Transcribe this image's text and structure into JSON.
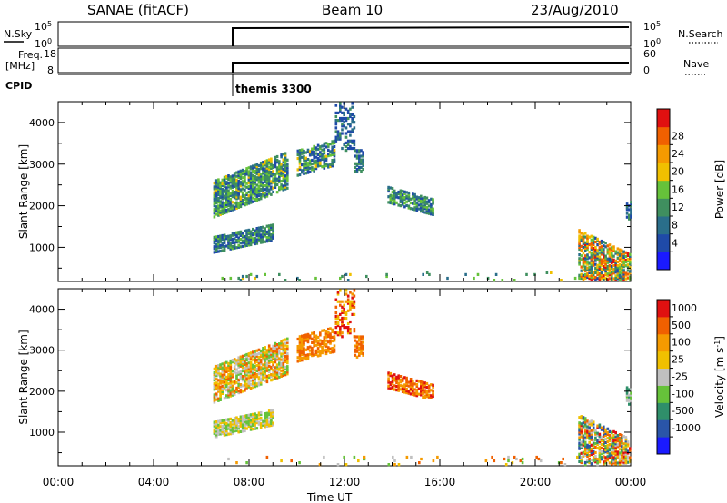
{
  "header": {
    "station": "SANAE (fitACF)",
    "beam": "Beam 10",
    "date": "23/Aug/2010"
  },
  "strips": {
    "nsky_label": "N.Sky",
    "nsearch_label": "N.Search",
    "noise_ticks": [
      "10^5",
      "10^0"
    ],
    "freq_label_1": "Freq.",
    "freq_label_2": "[MHz]",
    "freq_ticks": [
      "18",
      "8"
    ],
    "nave_label": "Nave",
    "nave_ticks": [
      "60",
      "0"
    ],
    "cpid_label": "CPID",
    "cpid_value": "themis 3300"
  },
  "colors": {
    "power": [
      "#1a1aff",
      "#1f4aa8",
      "#2a6e8a",
      "#3f8f5f",
      "#66c23a",
      "#f0c000",
      "#f59a00",
      "#f06000",
      "#e01010"
    ],
    "velocity": [
      "#1a1aff",
      "#2a55a8",
      "#2f8f6a",
      "#66c23a",
      "#c0c0c0",
      "#f0c000",
      "#f59a00",
      "#f06000",
      "#e01010"
    ]
  },
  "chart_data": [
    {
      "type": "heatmap",
      "title": "Power",
      "xlabel": "Time UT",
      "ylabel": "Slant Range [km]",
      "x_ticks": [
        "00:00",
        "04:00",
        "08:00",
        "12:00",
        "16:00",
        "20:00",
        "00:00"
      ],
      "y_ticks": [
        1000,
        2000,
        3000,
        4000
      ],
      "ylim": [
        180,
        4500
      ],
      "colorbar_label": "Power [dB]",
      "colorbar_ticks": [
        4,
        8,
        12,
        16,
        20,
        24,
        28
      ],
      "clim": [
        0,
        32
      ],
      "regions": [
        {
          "t": [
            6.5,
            9.6
          ],
          "r": [
            1700,
            2600
          ],
          "tilt": 700,
          "v": [
            6,
            18
          ],
          "density": 0.75
        },
        {
          "t": [
            6.5,
            9.0
          ],
          "r": [
            850,
            1250
          ],
          "tilt": 300,
          "v": [
            5,
            16
          ],
          "density": 0.8
        },
        {
          "t": [
            10.0,
            11.6
          ],
          "r": [
            2700,
            3300
          ],
          "tilt": 250,
          "v": [
            4,
            18
          ],
          "density": 0.6
        },
        {
          "t": [
            11.6,
            12.4
          ],
          "r": [
            3300,
            4450
          ],
          "tilt": 0,
          "v": [
            4,
            12
          ],
          "density": 0.35
        },
        {
          "t": [
            12.4,
            12.8
          ],
          "r": [
            2800,
            3300
          ],
          "tilt": 0,
          "v": [
            5,
            14
          ],
          "density": 0.6
        },
        {
          "t": [
            13.8,
            15.7
          ],
          "r": [
            2050,
            2450
          ],
          "tilt": -300,
          "v": [
            5,
            16
          ],
          "density": 0.7
        },
        {
          "t": [
            21.8,
            24.0
          ],
          "r": [
            250,
            1400
          ],
          "tilt": -600,
          "v": [
            6,
            30
          ],
          "density": 0.7
        },
        {
          "t": [
            23.8,
            24.0
          ],
          "r": [
            1650,
            2100
          ],
          "tilt": 0,
          "v": [
            6,
            14
          ],
          "density": 0.6
        },
        {
          "t": [
            6.5,
            24.0
          ],
          "r": [
            180,
            400
          ],
          "tilt": 0,
          "v": [
            8,
            18
          ],
          "density": 0.05
        }
      ]
    },
    {
      "type": "heatmap",
      "title": "Velocity",
      "xlabel": "Time UT",
      "ylabel": "Slant Range [km]",
      "x_ticks": [
        "00:00",
        "04:00",
        "08:00",
        "12:00",
        "16:00",
        "20:00",
        "00:00"
      ],
      "y_ticks": [
        1000,
        2000,
        3000,
        4000
      ],
      "ylim": [
        180,
        4500
      ],
      "colorbar_label": "Velocity [m s^-1]",
      "colorbar_ticks": [
        "1000",
        "500",
        "100",
        "25",
        "-25",
        "-100",
        "-500",
        "-1000"
      ],
      "regions": [
        {
          "t": [
            6.5,
            9.6
          ],
          "r": [
            1700,
            2600
          ],
          "tilt": 700,
          "v": [
            3,
            7
          ],
          "density": 0.75
        },
        {
          "t": [
            6.5,
            9.0
          ],
          "r": [
            850,
            1250
          ],
          "tilt": 300,
          "v": [
            3,
            5
          ],
          "density": 0.8
        },
        {
          "t": [
            10.0,
            11.6
          ],
          "r": [
            2700,
            3300
          ],
          "tilt": 250,
          "v": [
            6,
            7
          ],
          "density": 0.6
        },
        {
          "t": [
            11.6,
            12.4
          ],
          "r": [
            3300,
            4450
          ],
          "tilt": 0,
          "v": [
            5,
            8
          ],
          "density": 0.35
        },
        {
          "t": [
            12.4,
            12.8
          ],
          "r": [
            2800,
            3300
          ],
          "tilt": 0,
          "v": [
            6,
            7
          ],
          "density": 0.6
        },
        {
          "t": [
            13.8,
            15.7
          ],
          "r": [
            2050,
            2450
          ],
          "tilt": -300,
          "v": [
            6,
            8
          ],
          "density": 0.7
        },
        {
          "t": [
            21.8,
            24.0
          ],
          "r": [
            250,
            1400
          ],
          "tilt": -600,
          "v": [
            1,
            8
          ],
          "density": 0.7
        },
        {
          "t": [
            23.8,
            24.0
          ],
          "r": [
            1650,
            2100
          ],
          "tilt": 0,
          "v": [
            2,
            4
          ],
          "density": 0.6
        },
        {
          "t": [
            6.5,
            24.0
          ],
          "r": [
            180,
            400
          ],
          "tilt": 0,
          "v": [
            3,
            7
          ],
          "density": 0.05
        }
      ]
    }
  ]
}
